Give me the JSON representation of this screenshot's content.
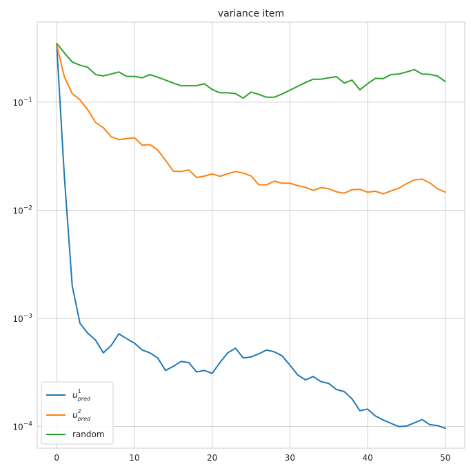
{
  "chart_data": {
    "type": "line",
    "title": "variance item",
    "xlabel": "",
    "ylabel": "",
    "xlim": [
      -2.5,
      52.5
    ],
    "ylim": [
      6.3e-05,
      0.55
    ],
    "yscale": "log",
    "grid": true,
    "legend_position": "lower-left",
    "x_ticks": [
      0,
      10,
      20,
      30,
      40,
      50
    ],
    "x_tick_labels": [
      "0",
      "10",
      "20",
      "30",
      "40",
      "50"
    ],
    "y_ticks": [
      0.0001,
      0.001,
      0.01,
      0.1
    ],
    "y_tick_labels": [
      {
        "base": "10",
        "exp": "−4"
      },
      {
        "base": "10",
        "exp": "−3"
      },
      {
        "base": "10",
        "exp": "−2"
      },
      {
        "base": "10",
        "exp": "−1"
      }
    ],
    "x": [
      0,
      1,
      2,
      3,
      4,
      5,
      6,
      7,
      8,
      9,
      10,
      11,
      12,
      13,
      14,
      15,
      16,
      17,
      18,
      19,
      20,
      21,
      22,
      23,
      24,
      25,
      26,
      27,
      28,
      29,
      30,
      31,
      32,
      33,
      34,
      35,
      36,
      37,
      38,
      39,
      40,
      41,
      42,
      43,
      44,
      45,
      46,
      47,
      48,
      49,
      50
    ],
    "series": [
      {
        "name": "u_pred^1",
        "label_base": "u",
        "label_sup": "1",
        "label_sub": "pred",
        "color": "#1f77b4",
        "values": [
          0.34,
          0.02,
          0.002,
          0.0009,
          0.00073,
          0.00063,
          0.00048,
          0.00056,
          0.00072,
          0.00065,
          0.00059,
          0.00051,
          0.00048,
          0.00043,
          0.00033,
          0.00036,
          0.0004,
          0.00039,
          0.00032,
          0.00033,
          0.00031,
          0.00039,
          0.00048,
          0.00053,
          0.00043,
          0.00044,
          0.00047,
          0.00051,
          0.00049,
          0.00045,
          0.00037,
          0.0003,
          0.00027,
          0.00029,
          0.00026,
          0.00025,
          0.00022,
          0.00021,
          0.00018,
          0.00014,
          0.000145,
          0.000125,
          0.000115,
          0.000107,
          0.0001,
          0.000101,
          0.000108,
          0.000116,
          0.000104,
          0.000102,
          9.6e-05
        ]
      },
      {
        "name": "u_pred^2",
        "label_base": "u",
        "label_sup": "2",
        "label_sub": "pred",
        "color": "#ff7f0e",
        "values": [
          0.34,
          0.17,
          0.12,
          0.105,
          0.085,
          0.065,
          0.058,
          0.048,
          0.045,
          0.046,
          0.047,
          0.04,
          0.0405,
          0.036,
          0.029,
          0.023,
          0.0228,
          0.0236,
          0.0201,
          0.0207,
          0.0217,
          0.0206,
          0.0218,
          0.0228,
          0.0221,
          0.0208,
          0.0172,
          0.0172,
          0.0186,
          0.0178,
          0.0178,
          0.0169,
          0.0163,
          0.0153,
          0.0162,
          0.0158,
          0.0148,
          0.0144,
          0.0155,
          0.0156,
          0.0147,
          0.015,
          0.0142,
          0.0151,
          0.016,
          0.0176,
          0.0191,
          0.0194,
          0.0179,
          0.0158,
          0.0147
        ]
      },
      {
        "name": "random",
        "label_base": "random",
        "label_sup": "",
        "label_sub": "",
        "color": "#2ca02c",
        "values": [
          0.35,
          0.285,
          0.235,
          0.22,
          0.21,
          0.18,
          0.175,
          0.182,
          0.19,
          0.173,
          0.173,
          0.168,
          0.18,
          0.17,
          0.16,
          0.15,
          0.142,
          0.142,
          0.142,
          0.148,
          0.131,
          0.122,
          0.122,
          0.12,
          0.109,
          0.124,
          0.118,
          0.111,
          0.111,
          0.119,
          0.129,
          0.14,
          0.152,
          0.163,
          0.163,
          0.168,
          0.172,
          0.15,
          0.16,
          0.13,
          0.148,
          0.166,
          0.165,
          0.18,
          0.182,
          0.19,
          0.2,
          0.182,
          0.181,
          0.174,
          0.155
        ]
      }
    ]
  }
}
